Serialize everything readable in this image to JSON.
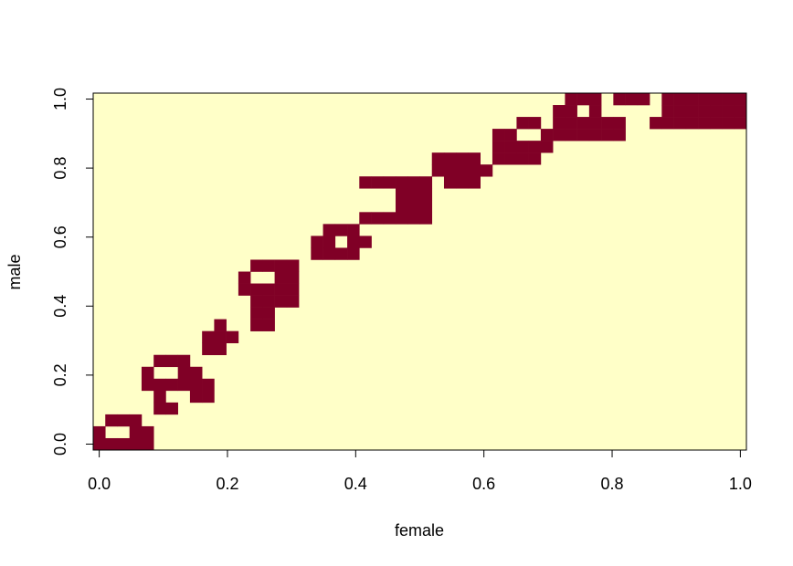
{
  "chart_data": {
    "type": "heatmap",
    "title": "",
    "xlabel": "female",
    "ylabel": "male",
    "xlim": [
      0.0,
      1.0
    ],
    "ylim": [
      0.0,
      1.0
    ],
    "x_ticks": [
      "0.0",
      "0.2",
      "0.4",
      "0.6",
      "0.8",
      "1.0"
    ],
    "y_ticks": [
      "0.0",
      "0.2",
      "0.4",
      "0.6",
      "0.8",
      "1.0"
    ],
    "grid_size": [
      54,
      30
    ],
    "background_color": "#FFFFC8",
    "fill_color": "#800026",
    "axis_color": "#000000",
    "filled_cells": [
      [
        0,
        0
      ],
      [
        1,
        0
      ],
      [
        2,
        0
      ],
      [
        3,
        0
      ],
      [
        4,
        0
      ],
      [
        0,
        1
      ],
      [
        3,
        1
      ],
      [
        4,
        1
      ],
      [
        1,
        2
      ],
      [
        2,
        2
      ],
      [
        3,
        2
      ],
      [
        5,
        3
      ],
      [
        6,
        3
      ],
      [
        5,
        4
      ],
      [
        8,
        4
      ],
      [
        9,
        4
      ],
      [
        4,
        5
      ],
      [
        5,
        5
      ],
      [
        6,
        5
      ],
      [
        7,
        5
      ],
      [
        8,
        5
      ],
      [
        9,
        5
      ],
      [
        4,
        6
      ],
      [
        7,
        6
      ],
      [
        8,
        6
      ],
      [
        5,
        7
      ],
      [
        6,
        7
      ],
      [
        7,
        7
      ],
      [
        9,
        8
      ],
      [
        10,
        8
      ],
      [
        9,
        9
      ],
      [
        10,
        9
      ],
      [
        11,
        9
      ],
      [
        10,
        10
      ],
      [
        13,
        10
      ],
      [
        14,
        10
      ],
      [
        13,
        11
      ],
      [
        14,
        11
      ],
      [
        13,
        12
      ],
      [
        14,
        12
      ],
      [
        15,
        12
      ],
      [
        16,
        12
      ],
      [
        12,
        13
      ],
      [
        13,
        13
      ],
      [
        14,
        13
      ],
      [
        15,
        13
      ],
      [
        16,
        13
      ],
      [
        12,
        14
      ],
      [
        15,
        14
      ],
      [
        16,
        14
      ],
      [
        13,
        15
      ],
      [
        14,
        15
      ],
      [
        15,
        15
      ],
      [
        16,
        15
      ],
      [
        18,
        16
      ],
      [
        19,
        16
      ],
      [
        20,
        16
      ],
      [
        21,
        16
      ],
      [
        18,
        17
      ],
      [
        19,
        17
      ],
      [
        21,
        17
      ],
      [
        22,
        17
      ],
      [
        19,
        18
      ],
      [
        20,
        18
      ],
      [
        21,
        18
      ],
      [
        22,
        19
      ],
      [
        23,
        19
      ],
      [
        24,
        19
      ],
      [
        25,
        19
      ],
      [
        26,
        19
      ],
      [
        27,
        19
      ],
      [
        25,
        20
      ],
      [
        26,
        20
      ],
      [
        27,
        20
      ],
      [
        25,
        21
      ],
      [
        26,
        21
      ],
      [
        27,
        21
      ],
      [
        22,
        22
      ],
      [
        23,
        22
      ],
      [
        24,
        22
      ],
      [
        25,
        22
      ],
      [
        26,
        22
      ],
      [
        27,
        22
      ],
      [
        29,
        22
      ],
      [
        30,
        22
      ],
      [
        31,
        22
      ],
      [
        28,
        23
      ],
      [
        29,
        23
      ],
      [
        30,
        23
      ],
      [
        31,
        23
      ],
      [
        32,
        23
      ],
      [
        28,
        24
      ],
      [
        29,
        24
      ],
      [
        30,
        24
      ],
      [
        31,
        24
      ],
      [
        33,
        24
      ],
      [
        34,
        24
      ],
      [
        35,
        24
      ],
      [
        36,
        24
      ],
      [
        33,
        25
      ],
      [
        34,
        25
      ],
      [
        35,
        25
      ],
      [
        36,
        25
      ],
      [
        37,
        25
      ],
      [
        33,
        26
      ],
      [
        34,
        26
      ],
      [
        37,
        26
      ],
      [
        38,
        26
      ],
      [
        39,
        26
      ],
      [
        40,
        26
      ],
      [
        41,
        26
      ],
      [
        35,
        27
      ],
      [
        36,
        27
      ],
      [
        38,
        27
      ],
      [
        39,
        27
      ],
      [
        40,
        27
      ],
      [
        41,
        27
      ],
      [
        38,
        28
      ],
      [
        39,
        28
      ],
      [
        41,
        28
      ],
      [
        39,
        29
      ],
      [
        40,
        29
      ],
      [
        41,
        29
      ],
      [
        42,
        26
      ],
      [
        43,
        26
      ],
      [
        42,
        27
      ],
      [
        43,
        27
      ],
      [
        46,
        27
      ],
      [
        47,
        27
      ],
      [
        48,
        27
      ],
      [
        49,
        27
      ],
      [
        50,
        27
      ],
      [
        51,
        27
      ],
      [
        52,
        27
      ],
      [
        53,
        27
      ],
      [
        48,
        28
      ],
      [
        49,
        28
      ],
      [
        50,
        28
      ],
      [
        51,
        28
      ],
      [
        52,
        28
      ],
      [
        53,
        28
      ],
      [
        43,
        29
      ],
      [
        44,
        29
      ],
      [
        45,
        29
      ],
      [
        47,
        29
      ],
      [
        48,
        29
      ],
      [
        49,
        29
      ],
      [
        50,
        29
      ],
      [
        51,
        29
      ],
      [
        52,
        29
      ],
      [
        53,
        29
      ],
      [
        47,
        28
      ]
    ]
  }
}
